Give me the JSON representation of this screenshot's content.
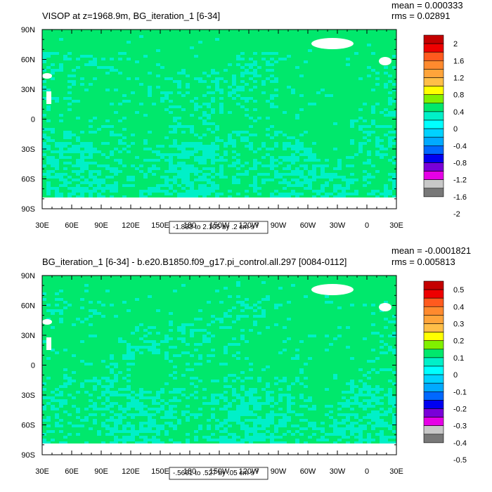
{
  "chart_data": [
    {
      "type": "heatmap",
      "title": "VISOP at z=1968.9m, BG_iteration_1 [6-34]",
      "stats": {
        "mean": "mean = 0.000333",
        "rms": "rms = 0.02891"
      },
      "x_ticks": [
        "30E",
        "60E",
        "90E",
        "120E",
        "150E",
        "180",
        "150W",
        "120W",
        "90W",
        "60W",
        "30W",
        "0",
        "30E"
      ],
      "y_ticks": [
        "90N",
        "60N",
        "30N",
        "0",
        "30S",
        "60S",
        "90S"
      ],
      "range_label": "-1.833 to 2.105 by .2 cm s",
      "range_exponent": "-1",
      "colorbar_labels": [
        "2",
        "1.6",
        "1.2",
        "0.8",
        "0.4",
        "0",
        "-0.4",
        "-0.8",
        "-1.2",
        "-1.6",
        "-2"
      ],
      "colors": [
        "#c40000",
        "#ee0000",
        "#ff5a1e",
        "#ff8a2e",
        "#ffa43a",
        "#ffbe48",
        "#ffff00",
        "#80f000",
        "#00e86c",
        "#00f0c8",
        "#00ffff",
        "#00d2ff",
        "#00aaff",
        "#0068ff",
        "#0000f0",
        "#7a00d8",
        "#e600e6",
        "#c8c8c8",
        "#787878"
      ]
    },
    {
      "type": "heatmap",
      "title": "BG_iteration_1 [6-34] - b.e20.B1850.f09_g17.pi_control.all.297 [0084-0112]",
      "stats": {
        "mean": "mean = -0.0001821",
        "rms": "rms = 0.005813"
      },
      "x_ticks": [
        "30E",
        "60E",
        "90E",
        "120E",
        "150E",
        "180",
        "150W",
        "120W",
        "90W",
        "60W",
        "30W",
        "0",
        "30E"
      ],
      "y_ticks": [
        "90N",
        "60N",
        "30N",
        "0",
        "30S",
        "60S",
        "90S"
      ],
      "range_label": "-.5661 to .527 by .05 cm s",
      "range_exponent": "-1",
      "colorbar_labels": [
        "0.5",
        "0.4",
        "0.3",
        "0.2",
        "0.1",
        "0",
        "-0.1",
        "-0.2",
        "-0.3",
        "-0.4",
        "-0.5"
      ],
      "colors": [
        "#c40000",
        "#ee0000",
        "#ff5a1e",
        "#ff8a2e",
        "#ffa43a",
        "#ffbe48",
        "#ffff00",
        "#80f000",
        "#00e86c",
        "#00f0c8",
        "#00ffff",
        "#00d2ff",
        "#00aaff",
        "#0068ff",
        "#0000f0",
        "#7a00d8",
        "#e600e6",
        "#c8c8c8",
        "#787878"
      ]
    }
  ]
}
